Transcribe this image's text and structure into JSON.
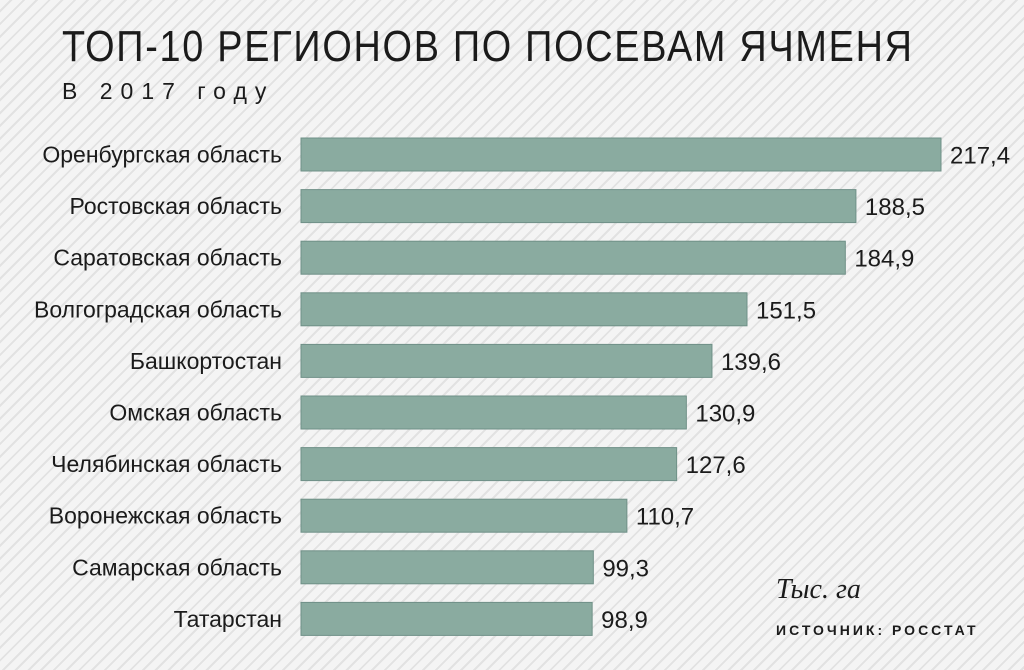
{
  "header": {
    "title": "ТОП-10 РЕГИОНОВ ПО ПОСЕВАМ ЯЧМЕНЯ",
    "subtitle": "В 2017 году"
  },
  "footer": {
    "unit": "Тыс. га",
    "source": "ИСТОЧНИК: РОССТАТ"
  },
  "colors": {
    "bar": "#8aaba0",
    "bar_stroke": "#6f9087"
  },
  "chart_data": {
    "type": "bar",
    "orientation": "horizontal",
    "title": "ТОП-10 РЕГИОНОВ ПО ПОСЕВАМ ЯЧМЕНЯ",
    "subtitle": "В 2017 году",
    "categories": [
      "Оренбургская область",
      "Ростовская область",
      "Саратовская область",
      "Волгоградская область",
      "Башкортостан",
      "Омская область",
      "Челябинская область",
      "Воронежская область",
      "Самарская область",
      "Татарстан"
    ],
    "values": [
      217.4,
      188.5,
      184.9,
      151.5,
      139.6,
      130.9,
      127.6,
      110.7,
      99.3,
      98.9
    ],
    "value_labels": [
      "217,4",
      "188,5",
      "184,9",
      "151,5",
      "139,6",
      "130,9",
      "127,6",
      "110,7",
      "99,3",
      "98,9"
    ],
    "unit": "Тыс. га",
    "xlim": [
      0,
      217.4
    ],
    "grid": false,
    "legend": "none"
  }
}
